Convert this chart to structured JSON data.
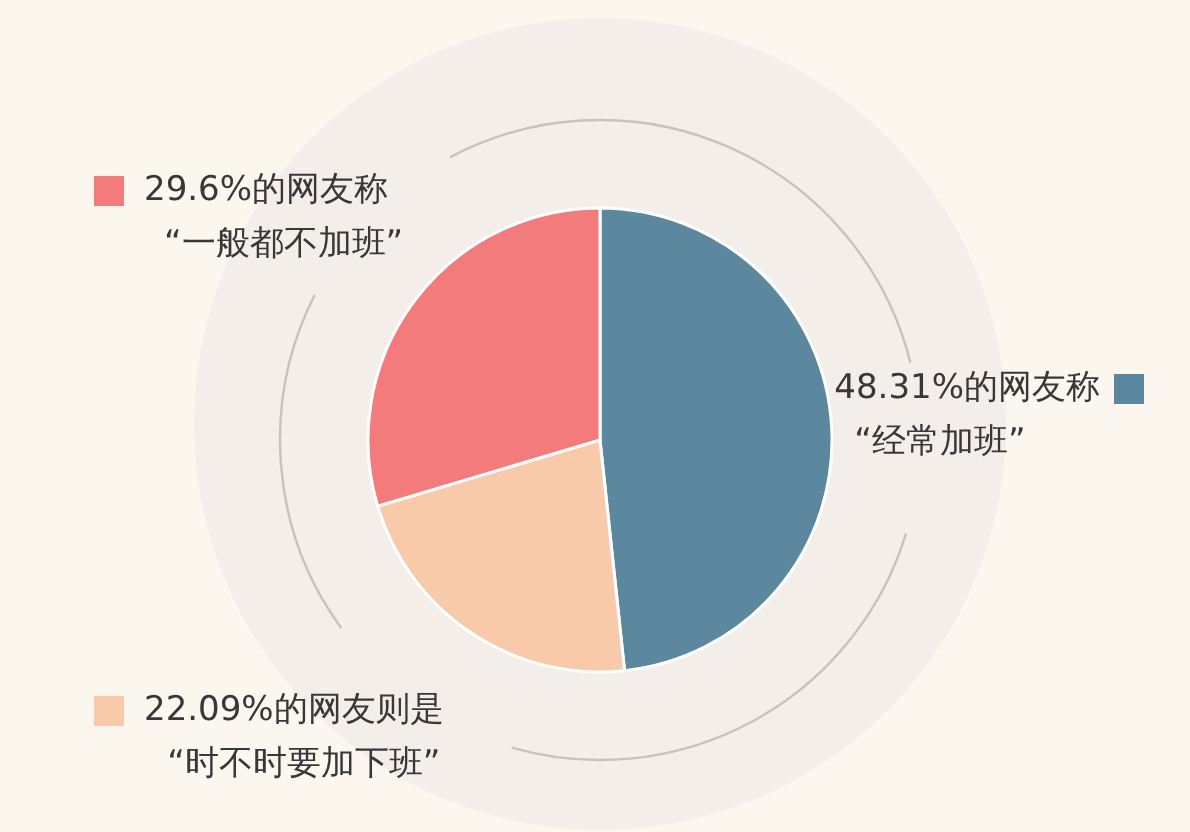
{
  "chart_data": {
    "type": "pie",
    "categories": [
      "“经常加班”",
      "“时不时要加下班”",
      "“一般都不加班”"
    ],
    "values": [
      48.31,
      22.09,
      29.6
    ],
    "colors": [
      "#5b889e",
      "#f8caa9",
      "#f37b7c"
    ],
    "value_labels": [
      "48.31%的网友称",
      "22.09%的网友则是",
      "29.6%的网友称"
    ]
  }
}
